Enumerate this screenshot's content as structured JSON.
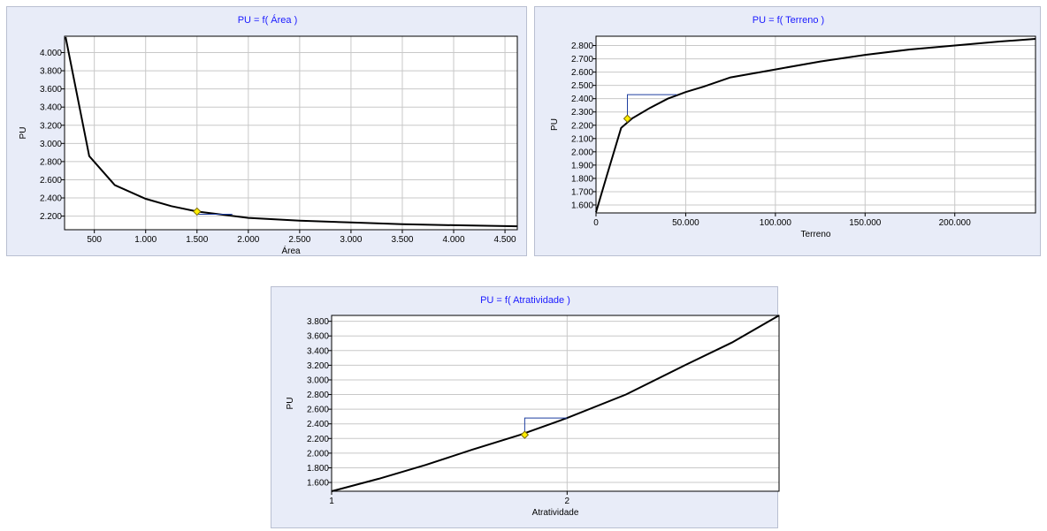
{
  "chart_data": [
    {
      "type": "line",
      "title": "PU = f( Área )",
      "xlabel": "Área",
      "ylabel": "PU",
      "xlim": [
        210,
        4620
      ],
      "ylim": [
        2050,
        4180
      ],
      "xticks": [
        500,
        1000,
        1500,
        2000,
        2500,
        3000,
        3500,
        4000,
        4500
      ],
      "xtick_labels": [
        "500",
        "1.000",
        "1.500",
        "2.000",
        "2.500",
        "3.000",
        "3.500",
        "4.000",
        "4.500"
      ],
      "yticks": [
        2200,
        2400,
        2600,
        2800,
        3000,
        3200,
        3400,
        3600,
        3800,
        4000
      ],
      "ytick_labels": [
        "2.200",
        "2.400",
        "2.600",
        "2.800",
        "3.000",
        "3.200",
        "3.400",
        "3.600",
        "3.800",
        "4.000"
      ],
      "series": [
        {
          "x": [
            220,
            450,
            700,
            1000,
            1250,
            1500,
            2000,
            2500,
            3000,
            3500,
            4000,
            4500,
            4620
          ],
          "y": [
            4170,
            2860,
            2540,
            2390,
            2310,
            2250,
            2180,
            2150,
            2130,
            2110,
            2100,
            2090,
            2088
          ]
        }
      ],
      "marker": {
        "x": 1500,
        "y": 2250,
        "y_ref": 2220
      },
      "grid": true
    },
    {
      "type": "line",
      "title": "PU = f( Terreno )",
      "xlabel": "Terreno",
      "ylabel": "PU",
      "xlim": [
        0,
        245000
      ],
      "ylim": [
        1540,
        2870
      ],
      "xticks": [
        0,
        50000,
        100000,
        150000,
        200000
      ],
      "xtick_labels": [
        "0",
        "50.000",
        "100.000",
        "150.000",
        "200.000"
      ],
      "yticks": [
        1600,
        1700,
        1800,
        1900,
        2000,
        2100,
        2200,
        2300,
        2400,
        2500,
        2600,
        2700,
        2800
      ],
      "ytick_labels": [
        "1.600",
        "1.700",
        "1.800",
        "1.900",
        "2.000",
        "2.100",
        "2.200",
        "2.300",
        "2.400",
        "2.500",
        "2.600",
        "2.700",
        "2.800"
      ],
      "series": [
        {
          "x": [
            0,
            6000,
            14000,
            20000,
            30000,
            40000,
            50000,
            60000,
            75000,
            100000,
            125000,
            150000,
            175000,
            200000,
            225000,
            245000
          ],
          "y": [
            1545,
            1820,
            2180,
            2250,
            2330,
            2400,
            2450,
            2490,
            2560,
            2620,
            2680,
            2730,
            2770,
            2800,
            2830,
            2850
          ]
        }
      ],
      "marker": {
        "x": 17500,
        "y": 2250,
        "y_ref": 2430,
        "x_ref": 45000
      },
      "grid": true
    },
    {
      "type": "line",
      "title": "PU = f( Atratividade )",
      "xlabel": "Atratividade",
      "ylabel": "PU",
      "xlim": [
        1,
        2.9
      ],
      "ylim": [
        1480,
        3880
      ],
      "xticks": [
        1,
        2
      ],
      "xtick_labels": [
        "1",
        "2"
      ],
      "yticks": [
        1600,
        1800,
        2000,
        2200,
        2400,
        2600,
        2800,
        3000,
        3200,
        3400,
        3600,
        3800
      ],
      "ytick_labels": [
        "1.600",
        "1.800",
        "2.000",
        "2.200",
        "2.400",
        "2.600",
        "2.800",
        "3.000",
        "3.200",
        "3.400",
        "3.600",
        "3.800"
      ],
      "series": [
        {
          "x": [
            1,
            1.2,
            1.4,
            1.6,
            1.8,
            2.0,
            2.25,
            2.5,
            2.7,
            2.9
          ],
          "y": [
            1480,
            1650,
            1840,
            2050,
            2250,
            2480,
            2800,
            3200,
            3510,
            3880
          ]
        }
      ],
      "marker": {
        "x": 1.82,
        "y": 2250,
        "y_ref": 2480,
        "x_ref": 2.0
      },
      "grid": true
    }
  ]
}
